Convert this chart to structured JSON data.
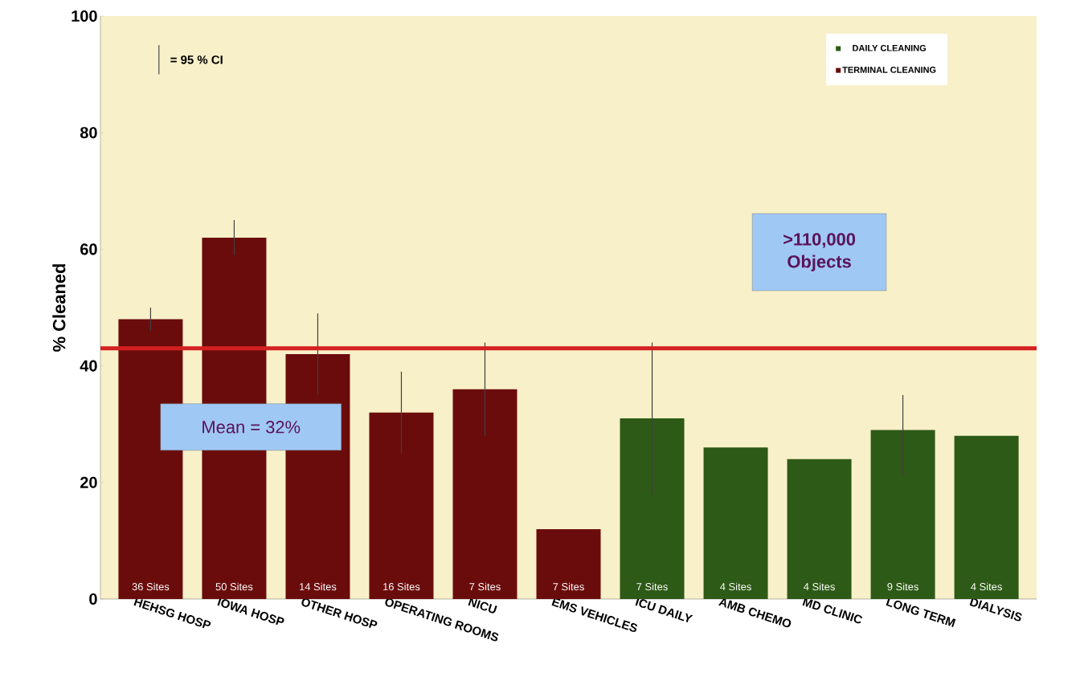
{
  "chart_data": {
    "type": "bar",
    "xlabel": null,
    "ylabel": "%  Cleaned",
    "categories": [
      "HEHSG HOSP",
      "IOWA HOSP",
      "OTHER HOSP",
      "OPERATING ROOMS",
      "NICU",
      "EMS VEHICLES",
      "ICU DAILY",
      "AMB CHEMO",
      "MD CLINIC",
      "LONG TERM",
      "DIALYSIS"
    ],
    "series": [
      {
        "name": "DAILY CLEANING",
        "color": "#2d5a16",
        "values": [
          null,
          null,
          null,
          null,
          null,
          null,
          31,
          26,
          24,
          29,
          28
        ],
        "errors": [
          null,
          null,
          null,
          null,
          null,
          null,
          [
            18,
            44
          ],
          null,
          null,
          [
            21,
            35
          ],
          null
        ]
      },
      {
        "name": "TERMINAL CLEANING",
        "color": "#6b0c0c",
        "values": [
          48,
          62,
          42,
          32,
          36,
          12,
          null,
          null,
          null,
          null,
          null
        ],
        "errors": [
          [
            46,
            50
          ],
          [
            59,
            65
          ],
          [
            35,
            49
          ],
          [
            25,
            39
          ],
          [
            28,
            44
          ],
          null,
          null,
          null,
          null,
          null,
          null
        ]
      }
    ],
    "ylim": [
      0,
      100
    ],
    "yticks": [
      0,
      20,
      40,
      60,
      80,
      100
    ],
    "grid": false,
    "legend": "top right",
    "ref_lines": [
      {
        "axis": "y",
        "value": 43,
        "color": "#d42020"
      }
    ],
    "annotations": [
      "= 95 % CI",
      "Mean = 32%",
      ">110,000 Objects",
      "36 Sites",
      "50 Sites",
      "14 Sites",
      "16 Sites",
      "7 Sites",
      "7 Sites",
      "7 Sites",
      "4 Sites",
      "4 Sites",
      "9 Sites",
      "4 Sites"
    ]
  }
}
